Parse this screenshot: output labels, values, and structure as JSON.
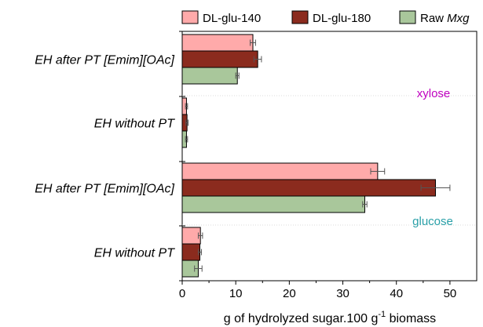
{
  "chart_data": {
    "type": "bar",
    "orientation": "horizontal",
    "xlabel": "g of hydrolyzed sugar.100 g",
    "xlabel_sup": "-1",
    "xlabel_suffix": " biomass",
    "xlim": [
      0,
      55
    ],
    "xticks": [
      0,
      10,
      20,
      30,
      40,
      50
    ],
    "grid": false,
    "legend_position": "top",
    "categories": [
      "EH after PT [Emim][OAc]",
      "EH without PT",
      "EH after PT [Emim][OAc]",
      "EH without PT"
    ],
    "groups": [
      {
        "annotation": "xylose",
        "annotation_color": "#c000c0",
        "category_indices": [
          0,
          1
        ]
      },
      {
        "annotation": "glucose",
        "annotation_color": "#2aa0a8",
        "category_indices": [
          2,
          3
        ]
      }
    ],
    "series": [
      {
        "name": "DL-glu-140",
        "color": "#ffaaaa",
        "values": [
          13.2,
          0.8,
          36.5,
          3.4
        ],
        "errors": [
          0.5,
          0.2,
          1.3,
          0.4
        ]
      },
      {
        "name": "DL-glu-180",
        "color": "#8b2b1e",
        "values": [
          14.1,
          0.9,
          47.3,
          3.3
        ],
        "errors": [
          0.7,
          0.2,
          2.7,
          0.3
        ]
      },
      {
        "name": "Raw",
        "name_italic": "Mxg",
        "color": "#a9c79b",
        "values": [
          10.3,
          0.8,
          34.1,
          3.0
        ],
        "errors": [
          0.3,
          0.2,
          0.4,
          0.7
        ]
      }
    ]
  }
}
